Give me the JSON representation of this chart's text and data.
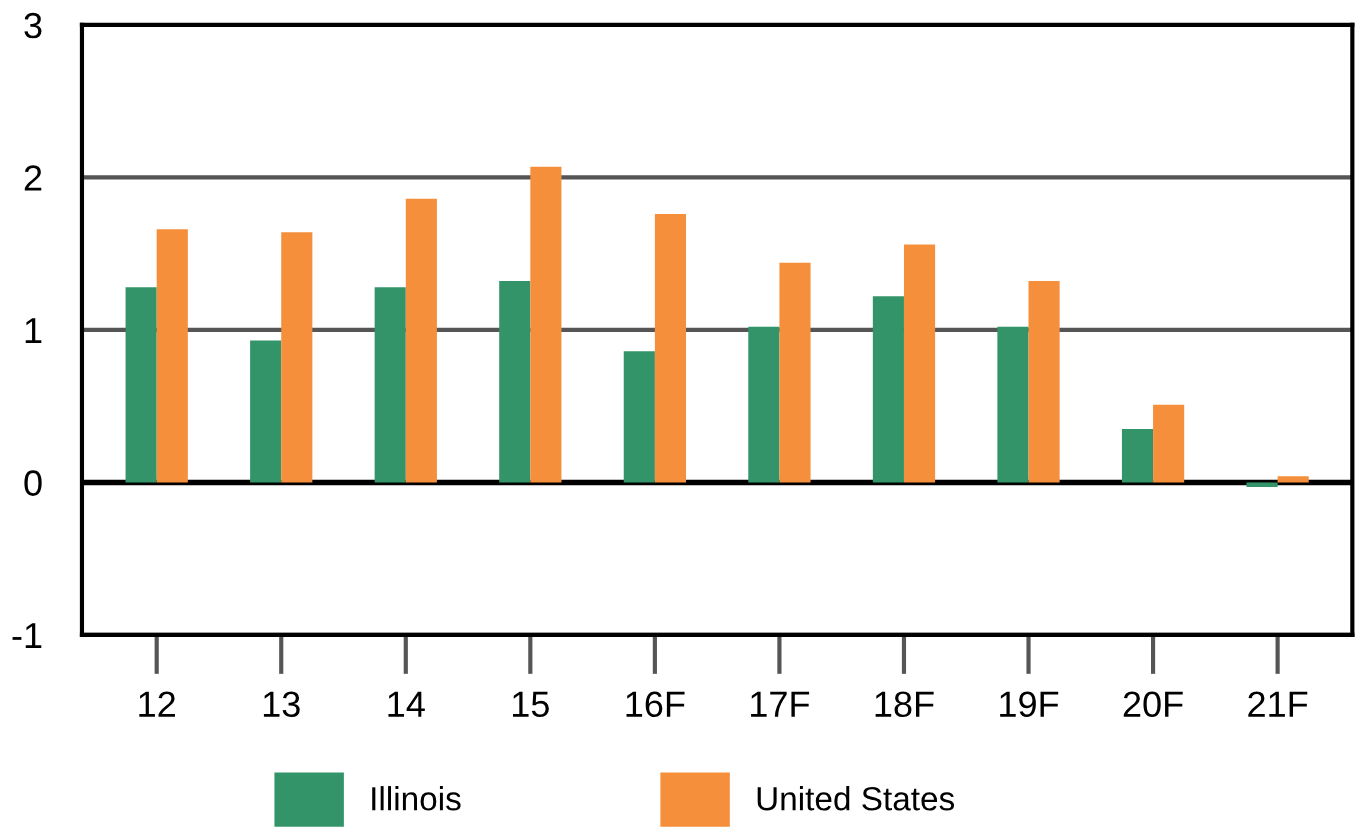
{
  "chart_data": {
    "type": "bar",
    "categories": [
      "12",
      "13",
      "14",
      "15",
      "16F",
      "17F",
      "18F",
      "19F",
      "20F",
      "21F"
    ],
    "series": [
      {
        "name": "Illinois",
        "color": "#339469",
        "values": [
          1.28,
          0.93,
          1.28,
          1.32,
          0.86,
          1.02,
          1.22,
          1.02,
          0.35,
          -0.03
        ]
      },
      {
        "name": "United States",
        "color": "#f58f3c",
        "values": [
          1.66,
          1.64,
          1.86,
          2.07,
          1.76,
          1.44,
          1.56,
          1.32,
          0.51,
          0.04
        ]
      }
    ],
    "ylim": [
      -1,
      3
    ],
    "yticks": [
      -1,
      0,
      1,
      2,
      3
    ],
    "grid": "y",
    "legend": "bottom"
  }
}
